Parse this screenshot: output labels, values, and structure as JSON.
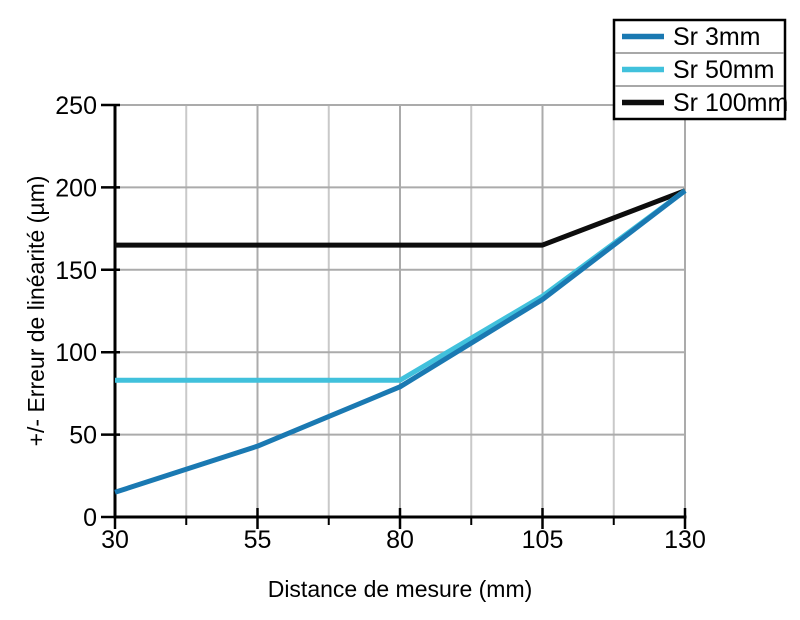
{
  "chart_data": {
    "type": "line",
    "title": "",
    "xlabel": "Distance de mesure (mm)",
    "ylabel": "+/- Erreur de linéarité (µm)",
    "xlim": [
      30,
      130
    ],
    "ylim": [
      0,
      250
    ],
    "x_ticks": [
      30,
      55,
      80,
      105,
      130
    ],
    "x_minor_ticks": [
      42.5,
      67.5,
      92.5,
      117.5
    ],
    "y_ticks": [
      0,
      50,
      100,
      150,
      200,
      250
    ],
    "grid": {
      "horizontal": "major",
      "vertical": "major-and-minor",
      "major_color": "#ababab",
      "minor_color": "#c9c9c9"
    },
    "legend": {
      "position": "top-right",
      "entries": [
        "Sr 3mm",
        "Sr 50mm",
        "Sr 100mm"
      ]
    },
    "series": [
      {
        "name": "Sr 3mm",
        "color": "#1a79b2",
        "points": [
          [
            30,
            15
          ],
          [
            55,
            43
          ],
          [
            80,
            79
          ],
          [
            105,
            132
          ],
          [
            130,
            198
          ]
        ]
      },
      {
        "name": "Sr 50mm",
        "color": "#41c1dc",
        "points": [
          [
            30,
            83
          ],
          [
            80,
            83
          ],
          [
            105,
            134
          ],
          [
            130,
            198
          ]
        ]
      },
      {
        "name": "Sr 100mm",
        "color": "#0d0d0d",
        "points": [
          [
            30,
            165
          ],
          [
            105,
            165
          ],
          [
            130,
            198
          ]
        ]
      }
    ],
    "axis_color": "#000000"
  }
}
